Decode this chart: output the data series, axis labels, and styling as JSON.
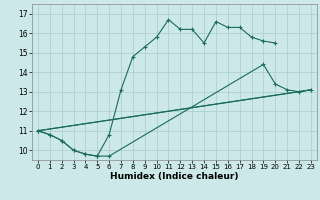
{
  "title": "",
  "xlabel": "Humidex (Indice chaleur)",
  "background_color": "#cce8e8",
  "grid_color": "#aacccc",
  "line_color": "#1a6b5a",
  "xlim": [
    -0.5,
    23.5
  ],
  "ylim": [
    9.5,
    17.5
  ],
  "xticks": [
    0,
    1,
    2,
    3,
    4,
    5,
    6,
    7,
    8,
    9,
    10,
    11,
    12,
    13,
    14,
    15,
    16,
    17,
    18,
    19,
    20,
    21,
    22,
    23
  ],
  "yticks": [
    10,
    11,
    12,
    13,
    14,
    15,
    16,
    17
  ],
  "line1_x": [
    0,
    1,
    2,
    3,
    4,
    5,
    6,
    7,
    8,
    9,
    10,
    11,
    12,
    13,
    14,
    15,
    16,
    17,
    18,
    19,
    20
  ],
  "line1_y": [
    11.0,
    10.8,
    10.5,
    10.0,
    9.8,
    9.7,
    10.8,
    13.1,
    14.8,
    15.3,
    15.8,
    16.7,
    16.2,
    16.2,
    15.5,
    16.6,
    16.3,
    16.3,
    15.8,
    15.6,
    15.5
  ],
  "line2_x": [
    0,
    1,
    2,
    3,
    4,
    5,
    6,
    19,
    20,
    21,
    22,
    23
  ],
  "line2_y": [
    11.0,
    10.8,
    10.5,
    10.0,
    9.8,
    9.7,
    9.7,
    14.4,
    13.4,
    13.1,
    13.0,
    13.1
  ],
  "line3_x": [
    0,
    22,
    23
  ],
  "line3_y": [
    11.0,
    13.0,
    13.1
  ],
  "line4_x": [
    0,
    23
  ],
  "line4_y": [
    11.0,
    13.1
  ]
}
